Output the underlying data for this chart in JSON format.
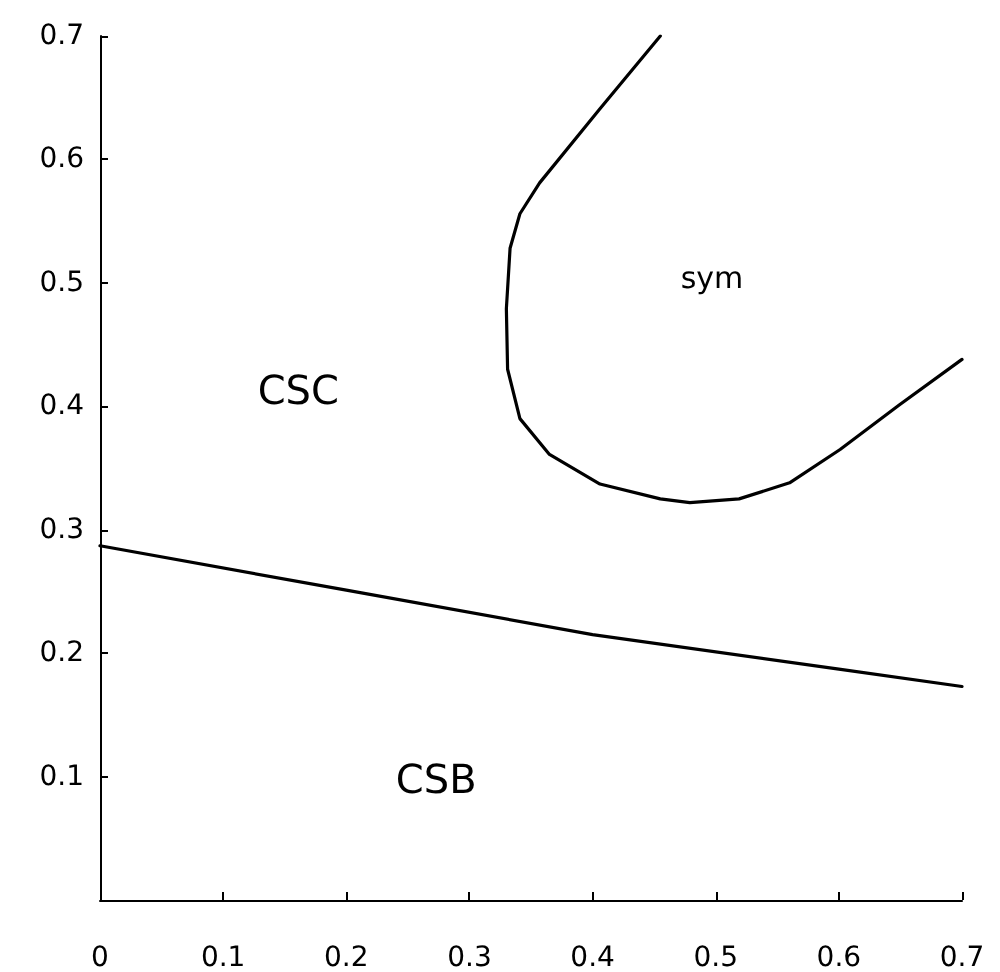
{
  "chart_data": {
    "type": "line",
    "xlim": [
      0,
      0.7
    ],
    "ylim": [
      0,
      0.7
    ],
    "xticks": [
      0,
      0.1,
      0.2,
      0.3,
      0.4,
      0.5,
      0.6,
      0.7
    ],
    "yticks": [
      0.1,
      0.2,
      0.3,
      0.4,
      0.5,
      0.6,
      0.7
    ],
    "grid": false,
    "marker": "none",
    "line_style": "solid",
    "series": [
      {
        "color": "#000000",
        "x": [
          0,
          0.2,
          0.4,
          0.6,
          0.7
        ],
        "values": [
          0.287,
          0.251,
          0.215,
          0.187,
          0.173
        ]
      },
      {
        "color": "#000000",
        "x": [
          0.455,
          0.406,
          0.357,
          0.341,
          0.333,
          0.33,
          0.331,
          0.341,
          0.365,
          0.406,
          0.455,
          0.479,
          0.519,
          0.56,
          0.601,
          0.649,
          0.7
        ],
        "values": [
          0.7,
          0.641,
          0.581,
          0.556,
          0.528,
          0.479,
          0.43,
          0.39,
          0.361,
          0.337,
          0.325,
          0.322,
          0.325,
          0.338,
          0.365,
          0.401,
          0.438
        ]
      }
    ],
    "annotations": [
      "CSC",
      "CSB",
      "sym"
    ]
  }
}
